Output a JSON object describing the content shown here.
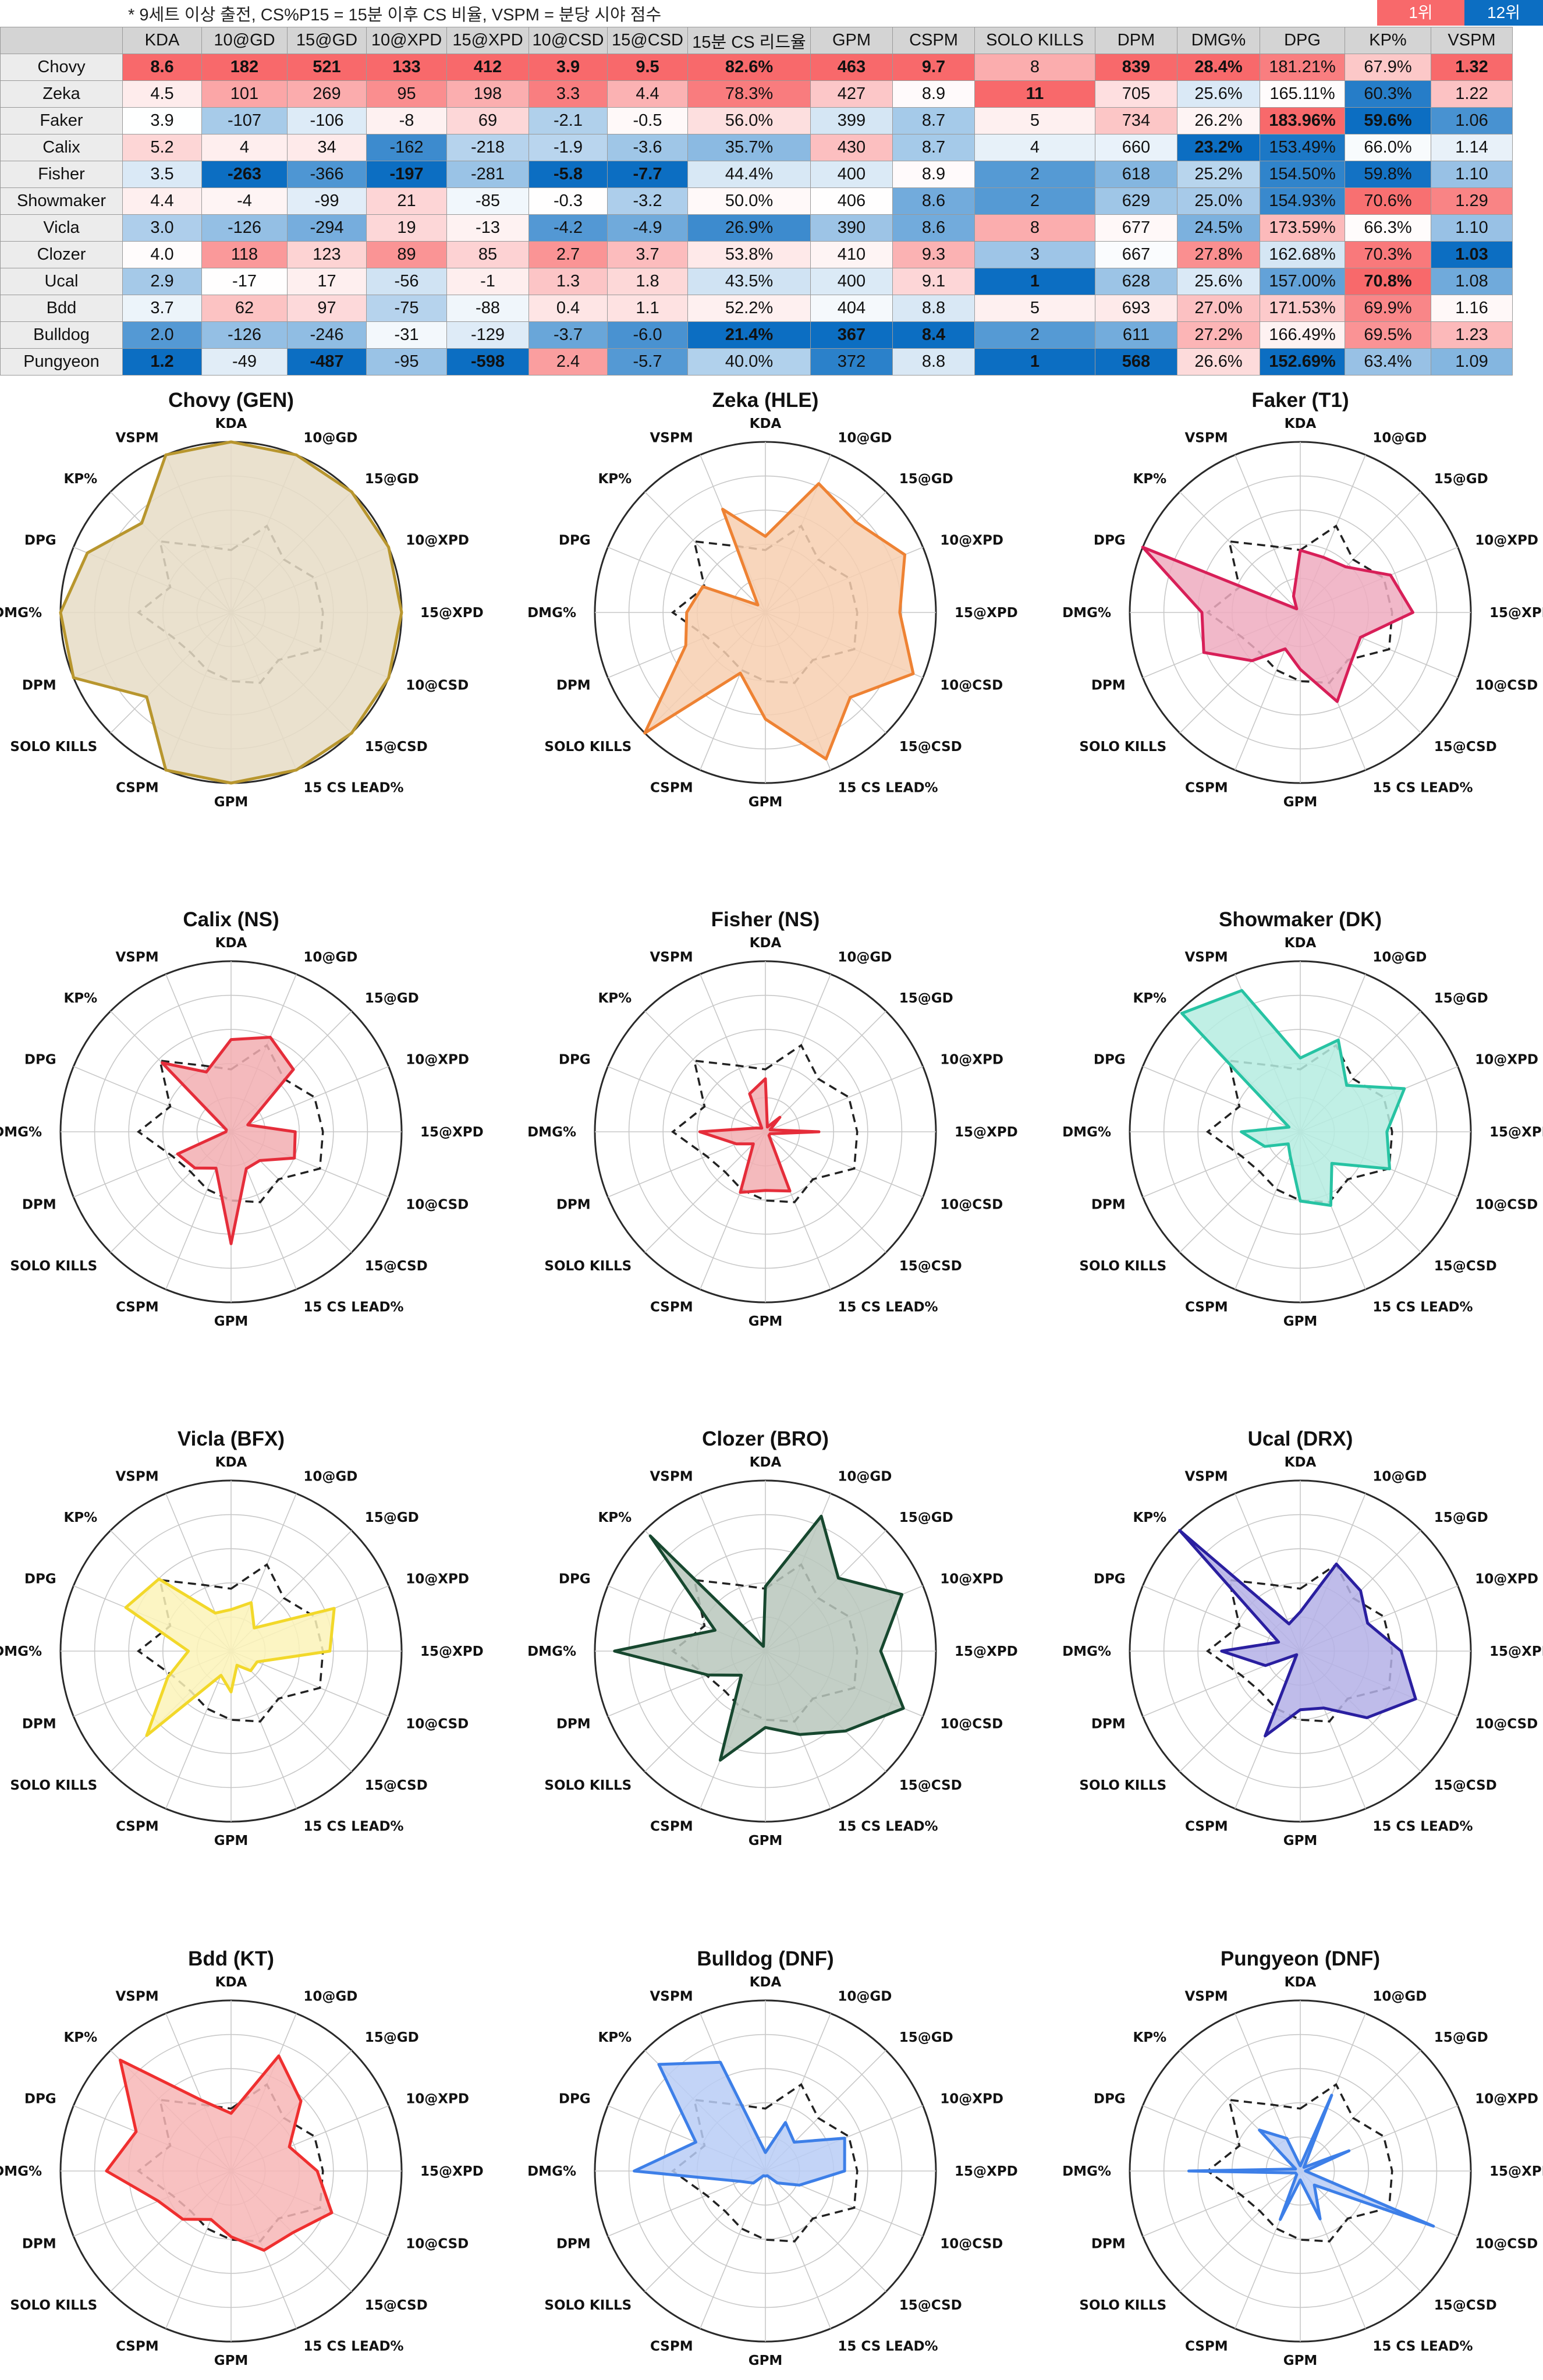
{
  "note": "* 9세트 이상 출전, CS%P15 = 15분 이후 CS 비율, VSPM = 분당 시야 점수",
  "legend": {
    "first": "1위",
    "last": "12위",
    "first_color": "#f8696b",
    "last_color": "#0c6ec2"
  },
  "table": {
    "columns": [
      "KDA",
      "10@GD",
      "15@GD",
      "10@XPD",
      "15@XPD",
      "10@CSD",
      "15@CSD",
      "15분 CS 리드율",
      "GPM",
      "CSPM",
      "SOLO KILLS",
      "DPM",
      "DMG%",
      "DPG",
      "KP%",
      "VSPM"
    ],
    "rows": [
      {
        "name": "Chovy",
        "cells": [
          "8.6",
          "182",
          "521",
          "133",
          "412",
          "3.9",
          "9.5",
          "82.6%",
          "463",
          "9.7",
          "8",
          "839",
          "28.4%",
          "181.21%",
          "67.9%",
          "1.32"
        ]
      },
      {
        "name": "Zeka",
        "cells": [
          "4.5",
          "101",
          "269",
          "95",
          "198",
          "3.3",
          "4.4",
          "78.3%",
          "427",
          "8.9",
          "11",
          "705",
          "25.6%",
          "165.11%",
          "60.3%",
          "1.22"
        ]
      },
      {
        "name": "Faker",
        "cells": [
          "3.9",
          "-107",
          "-106",
          "-8",
          "69",
          "-2.1",
          "-0.5",
          "56.0%",
          "399",
          "8.7",
          "5",
          "734",
          "26.2%",
          "183.96%",
          "59.6%",
          "1.06"
        ]
      },
      {
        "name": "Calix",
        "cells": [
          "5.2",
          "4",
          "34",
          "-162",
          "-218",
          "-1.9",
          "-3.6",
          "35.7%",
          "430",
          "8.7",
          "4",
          "660",
          "23.2%",
          "153.49%",
          "66.0%",
          "1.14"
        ]
      },
      {
        "name": "Fisher",
        "cells": [
          "3.5",
          "-263",
          "-366",
          "-197",
          "-281",
          "-5.8",
          "-7.7",
          "44.4%",
          "400",
          "8.9",
          "2",
          "618",
          "25.2%",
          "154.50%",
          "59.8%",
          "1.10"
        ]
      },
      {
        "name": "Showmaker",
        "cells": [
          "4.4",
          "-4",
          "-99",
          "21",
          "-85",
          "-0.3",
          "-3.2",
          "50.0%",
          "406",
          "8.6",
          "2",
          "629",
          "25.0%",
          "154.93%",
          "70.6%",
          "1.29"
        ]
      },
      {
        "name": "Vicla",
        "cells": [
          "3.0",
          "-126",
          "-294",
          "19",
          "-13",
          "-4.2",
          "-4.9",
          "26.9%",
          "390",
          "8.6",
          "8",
          "677",
          "24.5%",
          "173.59%",
          "66.3%",
          "1.10"
        ]
      },
      {
        "name": "Clozer",
        "cells": [
          "4.0",
          "118",
          "123",
          "89",
          "85",
          "2.7",
          "3.7",
          "53.8%",
          "410",
          "9.3",
          "3",
          "667",
          "27.8%",
          "162.68%",
          "70.3%",
          "1.03"
        ]
      },
      {
        "name": "Ucal",
        "cells": [
          "2.9",
          "-17",
          "17",
          "-56",
          "-1",
          "1.3",
          "1.8",
          "43.5%",
          "400",
          "9.1",
          "1",
          "628",
          "25.6%",
          "157.00%",
          "70.8%",
          "1.08"
        ]
      },
      {
        "name": "Bdd",
        "cells": [
          "3.7",
          "62",
          "97",
          "-75",
          "-88",
          "0.4",
          "1.1",
          "52.2%",
          "404",
          "8.8",
          "5",
          "693",
          "27.0%",
          "171.53%",
          "69.9%",
          "1.16"
        ]
      },
      {
        "name": "Bulldog",
        "cells": [
          "2.0",
          "-126",
          "-246",
          "-31",
          "-129",
          "-3.7",
          "-6.0",
          "21.4%",
          "367",
          "8.4",
          "2",
          "611",
          "27.2%",
          "166.49%",
          "69.5%",
          "1.23"
        ]
      },
      {
        "name": "Pungyeon",
        "cells": [
          "1.2",
          "-49",
          "-487",
          "-95",
          "-598",
          "2.4",
          "-5.7",
          "40.0%",
          "372",
          "8.8",
          "1",
          "568",
          "26.6%",
          "152.69%",
          "63.4%",
          "1.09"
        ]
      }
    ]
  },
  "chart_data": {
    "type": "radar",
    "axes": [
      "KDA",
      "10@GD",
      "15@GD",
      "10@XPD",
      "15@XPD",
      "10@CSD",
      "15@CSD",
      "15 CS LEAD%",
      "GPM",
      "CSPM",
      "SOLO KILLS",
      "DPM",
      "DMG%",
      "DPG",
      "KP%",
      "VSPM"
    ],
    "grid": true,
    "reference_line": {
      "style": "dashed",
      "color": "#222222"
    },
    "players": [
      {
        "title": "Chovy (GEN)",
        "color": "#b8962e",
        "fill": "#e6dcc6"
      },
      {
        "title": "Zeka (HLE)",
        "color": "#ee8233",
        "fill": "#f7cfb0"
      },
      {
        "title": "Faker (T1)",
        "color": "#d81f58",
        "fill": "#eeacbf"
      },
      {
        "title": "Calix (NS)",
        "color": "#e52d3a",
        "fill": "#f2aeb2"
      },
      {
        "title": "Fisher (NS)",
        "color": "#e52d3a",
        "fill": "#f2aeb2"
      },
      {
        "title": "Showmaker (DK)",
        "color": "#27c3a3",
        "fill": "#b5ece0"
      },
      {
        "title": "Vicla (BFX)",
        "color": "#f2d82a",
        "fill": "#fbf3b8"
      },
      {
        "title": "Clozer (BRO)",
        "color": "#17482f",
        "fill": "#b8c7bc"
      },
      {
        "title": "Ucal (DRX)",
        "color": "#2a1fa0",
        "fill": "#b4b0e6"
      },
      {
        "title": "Bdd (KT)",
        "color": "#ef2f2f",
        "fill": "#f7b6b6"
      },
      {
        "title": "Bulldog (DNF)",
        "color": "#3d7fe8",
        "fill": "#b8cdf6"
      },
      {
        "title": "Pungyeon (DNF)",
        "color": "#3d7fe8",
        "fill": "#b8cdf6"
      }
    ]
  }
}
